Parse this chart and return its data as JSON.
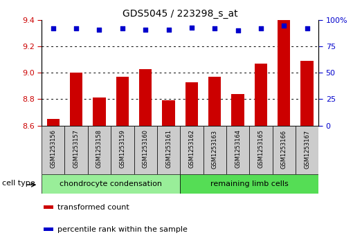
{
  "title": "GDS5045 / 223298_s_at",
  "samples": [
    "GSM1253156",
    "GSM1253157",
    "GSM1253158",
    "GSM1253159",
    "GSM1253160",
    "GSM1253161",
    "GSM1253162",
    "GSM1253163",
    "GSM1253164",
    "GSM1253165",
    "GSM1253166",
    "GSM1253167"
  ],
  "transformed_counts": [
    8.65,
    9.0,
    8.81,
    8.97,
    9.03,
    8.79,
    8.93,
    8.97,
    8.84,
    9.07,
    9.4,
    9.09
  ],
  "percentile_ranks": [
    92,
    92,
    91,
    92,
    91,
    91,
    93,
    92,
    90,
    92,
    95,
    92
  ],
  "ylim_left": [
    8.6,
    9.4
  ],
  "ylim_right": [
    0,
    100
  ],
  "yticks_left": [
    8.6,
    8.8,
    9.0,
    9.2,
    9.4
  ],
  "yticks_right": [
    0,
    25,
    50,
    75,
    100
  ],
  "bar_color": "#cc0000",
  "dot_color": "#0000cc",
  "cell_types": [
    {
      "label": "chondrocyte condensation",
      "start": 0,
      "end": 5,
      "color": "#99ee99"
    },
    {
      "label": "remaining limb cells",
      "start": 6,
      "end": 11,
      "color": "#55dd55"
    }
  ],
  "cell_type_label": "cell type",
  "sample_box_color": "#cccccc",
  "legend_items": [
    {
      "label": "transformed count",
      "color": "#cc0000"
    },
    {
      "label": "percentile rank within the sample",
      "color": "#0000cc"
    }
  ],
  "fig_bg": "#ffffff"
}
